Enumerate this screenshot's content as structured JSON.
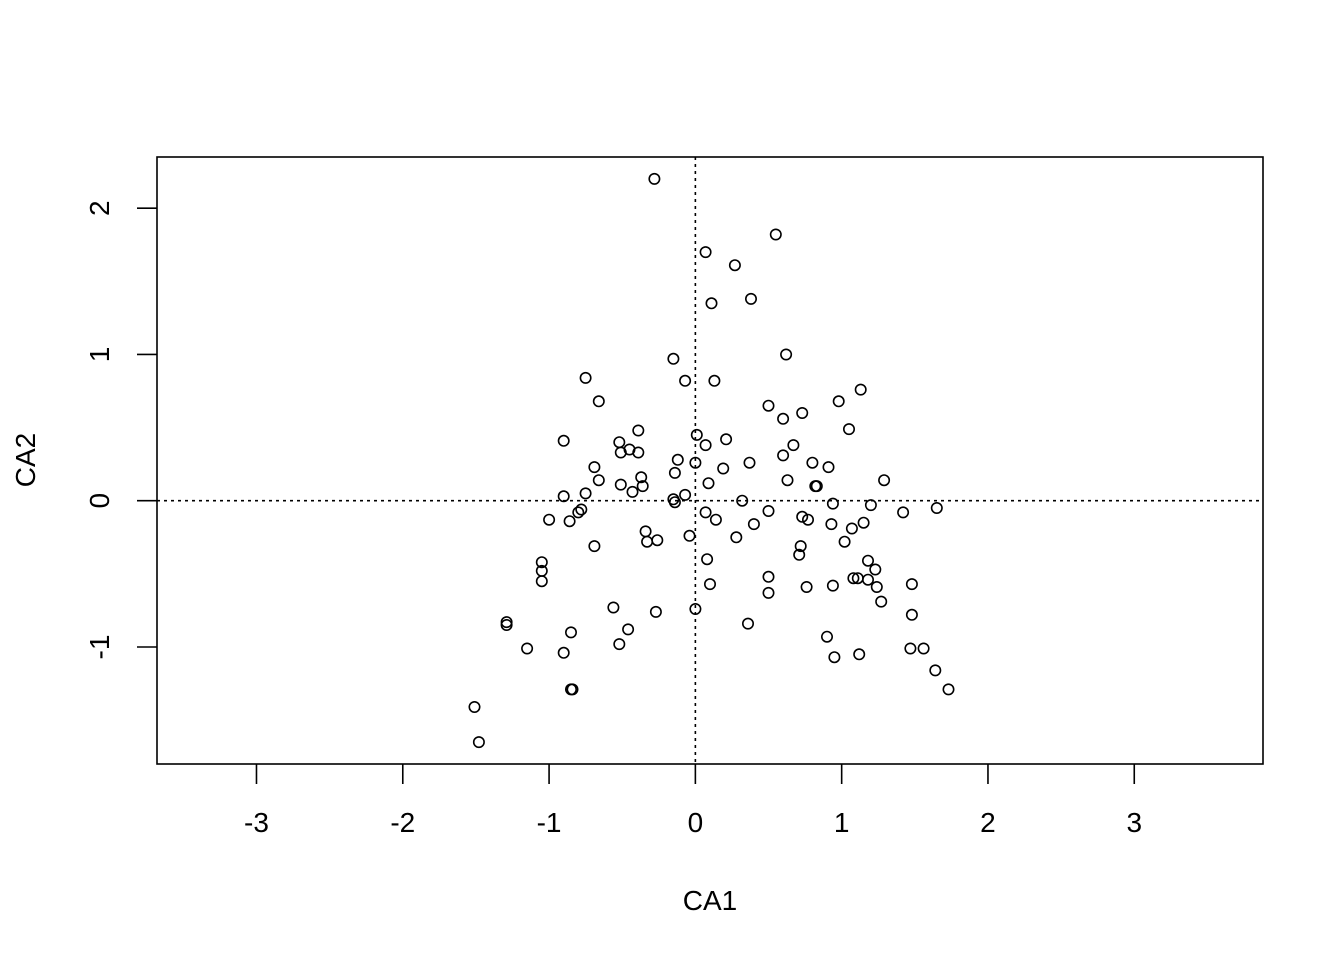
{
  "chart_data": {
    "type": "scatter",
    "title": "",
    "xlabel": "CA1",
    "ylabel": "CA2",
    "xlim": [
      -3.68,
      3.88
    ],
    "ylim": [
      -1.8,
      2.35
    ],
    "xticks": [
      -3,
      -2,
      -1,
      0,
      1,
      2,
      3
    ],
    "xtick_labels": [
      "-3",
      "-2",
      "-1",
      "0",
      "1",
      "2",
      "3"
    ],
    "yticks": [
      -1,
      0,
      1,
      2
    ],
    "ytick_labels": [
      "-1",
      "0",
      "1",
      "2"
    ],
    "reference_lines": {
      "x": 0,
      "y": 0,
      "style": "dotted"
    },
    "grid": false,
    "marker": "open-circle",
    "points": [
      [
        -0.28,
        2.2
      ],
      [
        0.55,
        1.82
      ],
      [
        0.07,
        1.7
      ],
      [
        0.27,
        1.61
      ],
      [
        0.38,
        1.38
      ],
      [
        0.11,
        1.35
      ],
      [
        0.62,
        1.0
      ],
      [
        -0.15,
        0.97
      ],
      [
        -0.75,
        0.84
      ],
      [
        -0.07,
        0.82
      ],
      [
        0.13,
        0.82
      ],
      [
        1.13,
        0.76
      ],
      [
        -0.66,
        0.68
      ],
      [
        0.98,
        0.68
      ],
      [
        0.5,
        0.65
      ],
      [
        0.73,
        0.6
      ],
      [
        0.6,
        0.56
      ],
      [
        1.05,
        0.49
      ],
      [
        -0.39,
        0.48
      ],
      [
        0.01,
        0.45
      ],
      [
        -0.9,
        0.41
      ],
      [
        -0.52,
        0.4
      ],
      [
        0.21,
        0.42
      ],
      [
        0.07,
        0.38
      ],
      [
        0.67,
        0.38
      ],
      [
        -0.45,
        0.35
      ],
      [
        -0.51,
        0.33
      ],
      [
        -0.39,
        0.33
      ],
      [
        0.6,
        0.31
      ],
      [
        -0.12,
        0.28
      ],
      [
        0.0,
        0.26
      ],
      [
        0.37,
        0.26
      ],
      [
        0.8,
        0.26
      ],
      [
        -0.69,
        0.23
      ],
      [
        0.19,
        0.22
      ],
      [
        0.91,
        0.23
      ],
      [
        -0.14,
        0.19
      ],
      [
        -0.37,
        0.16
      ],
      [
        0.63,
        0.14
      ],
      [
        1.29,
        0.14
      ],
      [
        -0.66,
        0.14
      ],
      [
        0.09,
        0.12
      ],
      [
        -0.51,
        0.11
      ],
      [
        -0.36,
        0.1
      ],
      [
        0.82,
        0.1
      ],
      [
        0.83,
        0.1
      ],
      [
        -0.75,
        0.05
      ],
      [
        -0.43,
        0.06
      ],
      [
        -0.07,
        0.04
      ],
      [
        -0.9,
        0.03
      ],
      [
        -0.15,
        0.01
      ],
      [
        0.32,
        0.0
      ],
      [
        -0.14,
        -0.01
      ],
      [
        0.94,
        -0.02
      ],
      [
        1.2,
        -0.03
      ],
      [
        1.65,
        -0.05
      ],
      [
        -0.78,
        -0.06
      ],
      [
        -0.8,
        -0.08
      ],
      [
        0.5,
        -0.07
      ],
      [
        0.07,
        -0.08
      ],
      [
        1.42,
        -0.08
      ],
      [
        0.73,
        -0.11
      ],
      [
        0.77,
        -0.13
      ],
      [
        -1.0,
        -0.13
      ],
      [
        -0.86,
        -0.14
      ],
      [
        0.14,
        -0.13
      ],
      [
        1.15,
        -0.15
      ],
      [
        0.4,
        -0.16
      ],
      [
        0.93,
        -0.16
      ],
      [
        1.07,
        -0.19
      ],
      [
        -0.34,
        -0.21
      ],
      [
        -0.04,
        -0.24
      ],
      [
        0.28,
        -0.25
      ],
      [
        -0.33,
        -0.28
      ],
      [
        -0.26,
        -0.27
      ],
      [
        1.02,
        -0.28
      ],
      [
        -0.69,
        -0.31
      ],
      [
        0.72,
        -0.31
      ],
      [
        0.71,
        -0.37
      ],
      [
        -1.05,
        -0.42
      ],
      [
        0.08,
        -0.4
      ],
      [
        1.18,
        -0.41
      ],
      [
        1.23,
        -0.47
      ],
      [
        -1.05,
        -0.48
      ],
      [
        -1.05,
        -0.55
      ],
      [
        0.5,
        -0.52
      ],
      [
        1.08,
        -0.53
      ],
      [
        1.11,
        -0.53
      ],
      [
        1.18,
        -0.54
      ],
      [
        0.1,
        -0.57
      ],
      [
        1.48,
        -0.57
      ],
      [
        0.76,
        -0.59
      ],
      [
        0.94,
        -0.58
      ],
      [
        1.24,
        -0.59
      ],
      [
        0.5,
        -0.63
      ],
      [
        1.27,
        -0.69
      ],
      [
        -0.56,
        -0.73
      ],
      [
        0.0,
        -0.74
      ],
      [
        -0.27,
        -0.76
      ],
      [
        1.48,
        -0.78
      ],
      [
        -1.29,
        -0.83
      ],
      [
        -1.29,
        -0.85
      ],
      [
        0.36,
        -0.84
      ],
      [
        -0.46,
        -0.88
      ],
      [
        -0.85,
        -0.9
      ],
      [
        0.9,
        -0.93
      ],
      [
        -0.52,
        -0.98
      ],
      [
        -1.15,
        -1.01
      ],
      [
        1.47,
        -1.01
      ],
      [
        1.56,
        -1.01
      ],
      [
        -0.9,
        -1.04
      ],
      [
        1.12,
        -1.05
      ],
      [
        0.95,
        -1.07
      ],
      [
        1.64,
        -1.16
      ],
      [
        -0.84,
        -1.29
      ],
      [
        -0.85,
        -1.29
      ],
      [
        1.73,
        -1.29
      ],
      [
        -1.51,
        -1.41
      ],
      [
        -1.48,
        -1.65
      ]
    ]
  }
}
